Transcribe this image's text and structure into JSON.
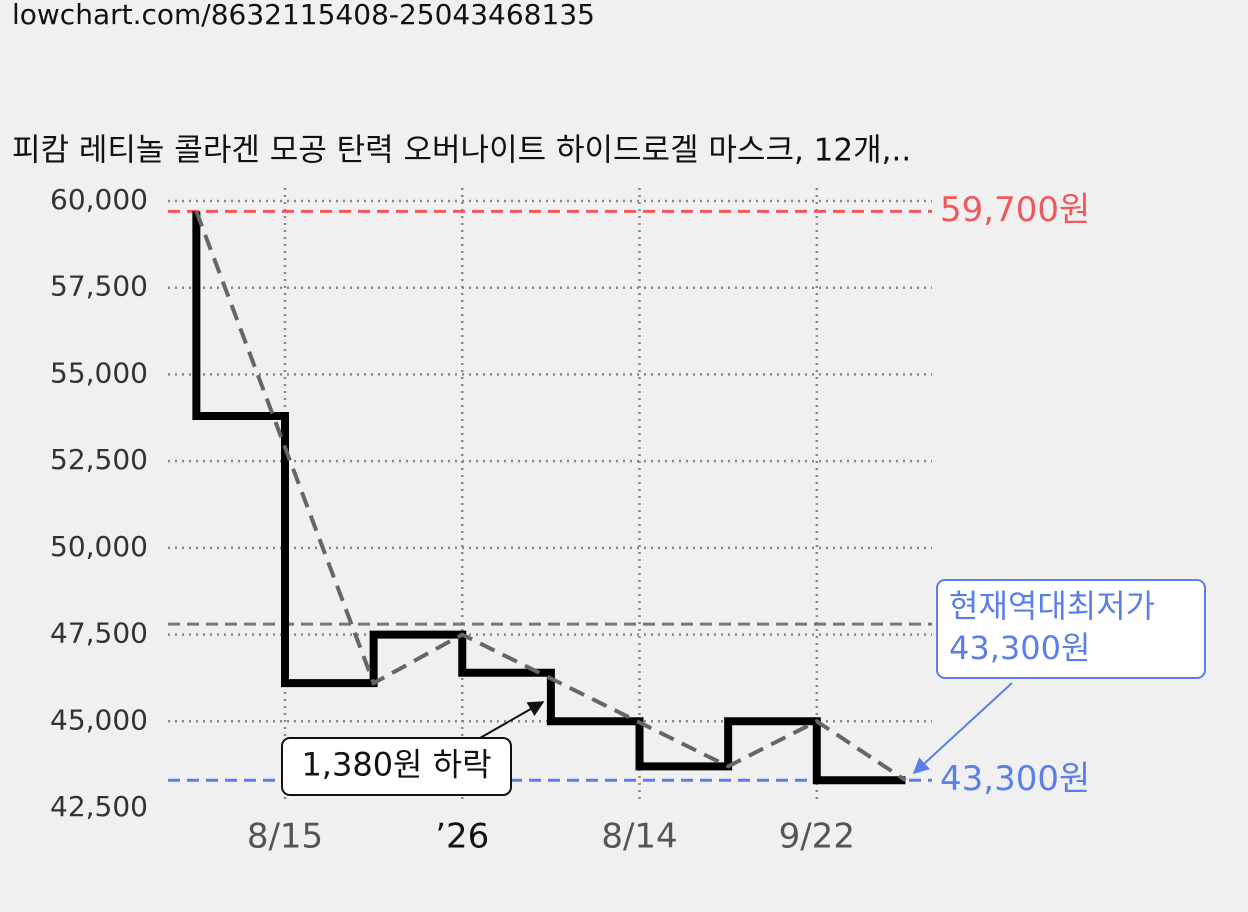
{
  "url": "lowchart.com/8632115408-25043468135",
  "chart_data": {
    "type": "step",
    "title": "피캄 레티놀 콜라겐 모공 탄력 오버나이트 하이드로겔 마스크, 12개,..",
    "xlim": [
      -0.32,
      8.3
    ],
    "xticks": [
      {
        "value": 1,
        "label": "8/15",
        "color": "#555555"
      },
      {
        "value": 3,
        "label": "’26",
        "color": "#111111"
      },
      {
        "value": 5,
        "label": "8/14",
        "color": "#555555"
      },
      {
        "value": 7,
        "label": "9/22",
        "color": "#555555"
      }
    ],
    "ylim": [
      42500,
      60000
    ],
    "yticks": [
      {
        "value": 42500,
        "label": "42,500"
      },
      {
        "value": 45000,
        "label": "45,000"
      },
      {
        "value": 47500,
        "label": "47,500"
      },
      {
        "value": 50000,
        "label": "50,000"
      },
      {
        "value": 52500,
        "label": "52,500"
      },
      {
        "value": 55000,
        "label": "55,000"
      },
      {
        "value": 57500,
        "label": "57,500"
      },
      {
        "value": 60000,
        "label": "60,000"
      }
    ],
    "grid": true,
    "series": [
      {
        "color": "#000000",
        "style": "step",
        "x": [
          0,
          0,
          1,
          2,
          3,
          4,
          5,
          6,
          7,
          8
        ],
        "values": [
          59700,
          53800,
          46100,
          47500,
          46400,
          45000,
          43700,
          45000,
          43300,
          43300
        ]
      },
      {
        "color": "#666666",
        "style": "dashed",
        "x": [
          0,
          2,
          3,
          6,
          7,
          8
        ],
        "values": [
          59700,
          46100,
          47500,
          43700,
          45000,
          43300
        ]
      }
    ],
    "reference_lines": [
      {
        "value": 59700,
        "color": "#f0595c",
        "label": "59,700원"
      },
      {
        "value": 47800,
        "color": "#777777"
      },
      {
        "value": 43300,
        "color": "#5b7fe8",
        "label": "43,300원"
      }
    ],
    "annotations": [
      {
        "lines": [
          "1,380원 하락"
        ],
        "color": "#111111",
        "border": "#111111"
      },
      {
        "lines": [
          "현재역대최저가",
          "43,300원"
        ],
        "color": "#5b7fe8",
        "border": "#5b7fe8"
      }
    ]
  }
}
